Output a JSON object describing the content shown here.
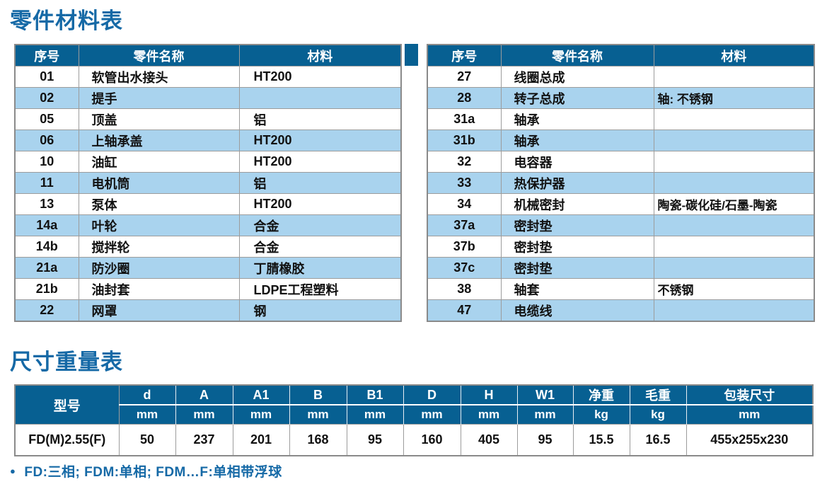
{
  "colors": {
    "header_blue": "#076092",
    "stripe_blue": "#a9d3ee",
    "title_blue": "#1569a6",
    "border_gray": "#9c9c9c",
    "outer_border_gray": "#8a8a8a"
  },
  "parts_table": {
    "title": "零件材料表",
    "columns": {
      "no": "序号",
      "name": "零件名称",
      "material": "材料"
    },
    "left_rows": [
      {
        "no": "01",
        "name": "软管出水接头",
        "material": "HT200"
      },
      {
        "no": "02",
        "name": "提手",
        "material": ""
      },
      {
        "no": "05",
        "name": "顶盖",
        "material": "铝"
      },
      {
        "no": "06",
        "name": "上轴承盖",
        "material": "HT200"
      },
      {
        "no": "10",
        "name": "油缸",
        "material": "HT200"
      },
      {
        "no": "11",
        "name": "电机筒",
        "material": "铝"
      },
      {
        "no": "13",
        "name": "泵体",
        "material": "HT200"
      },
      {
        "no": "14a",
        "name": "叶轮",
        "material": "合金"
      },
      {
        "no": "14b",
        "name": "搅拌轮",
        "material": "合金"
      },
      {
        "no": "21a",
        "name": "防沙圈",
        "material": "丁腈橡胶"
      },
      {
        "no": "21b",
        "name": "油封套",
        "material": "LDPE工程塑料"
      },
      {
        "no": "22",
        "name": "网罩",
        "material": "钢"
      }
    ],
    "right_rows": [
      {
        "no": "27",
        "name": "线圈总成",
        "material": ""
      },
      {
        "no": "28",
        "name": "转子总成",
        "material": "轴: 不锈钢"
      },
      {
        "no": "31a",
        "name": "轴承",
        "material": ""
      },
      {
        "no": "31b",
        "name": "轴承",
        "material": ""
      },
      {
        "no": "32",
        "name": "电容器",
        "material": ""
      },
      {
        "no": "33",
        "name": "热保护器",
        "material": ""
      },
      {
        "no": "34",
        "name": "机械密封",
        "material": "陶瓷-碳化硅/石墨-陶瓷"
      },
      {
        "no": "37a",
        "name": "密封垫",
        "material": ""
      },
      {
        "no": "37b",
        "name": "密封垫",
        "material": ""
      },
      {
        "no": "37c",
        "name": "密封垫",
        "material": ""
      },
      {
        "no": "38",
        "name": "轴套",
        "material": "不锈钢"
      },
      {
        "no": "47",
        "name": "电缆线",
        "material": ""
      }
    ]
  },
  "dimensions_table": {
    "title": "尺寸重量表",
    "model_header": "型号",
    "columns": [
      {
        "label": "d",
        "unit": "mm"
      },
      {
        "label": "A",
        "unit": "mm"
      },
      {
        "label": "A1",
        "unit": "mm"
      },
      {
        "label": "B",
        "unit": "mm"
      },
      {
        "label": "B1",
        "unit": "mm"
      },
      {
        "label": "D",
        "unit": "mm"
      },
      {
        "label": "H",
        "unit": "mm"
      },
      {
        "label": "W1",
        "unit": "mm"
      },
      {
        "label": "净重",
        "unit": "kg"
      },
      {
        "label": "毛重",
        "unit": "kg"
      },
      {
        "label": "包装尺寸",
        "unit": "mm"
      }
    ],
    "rows": [
      {
        "model": "FD(M)2.55(F)",
        "values": [
          "50",
          "237",
          "201",
          "168",
          "95",
          "160",
          "405",
          "95",
          "15.5",
          "16.5",
          "455x255x230"
        ]
      }
    ]
  },
  "footnote": {
    "bullet": "●",
    "text": "FD:三相; FDM:单相; FDM…F:单相带浮球"
  }
}
